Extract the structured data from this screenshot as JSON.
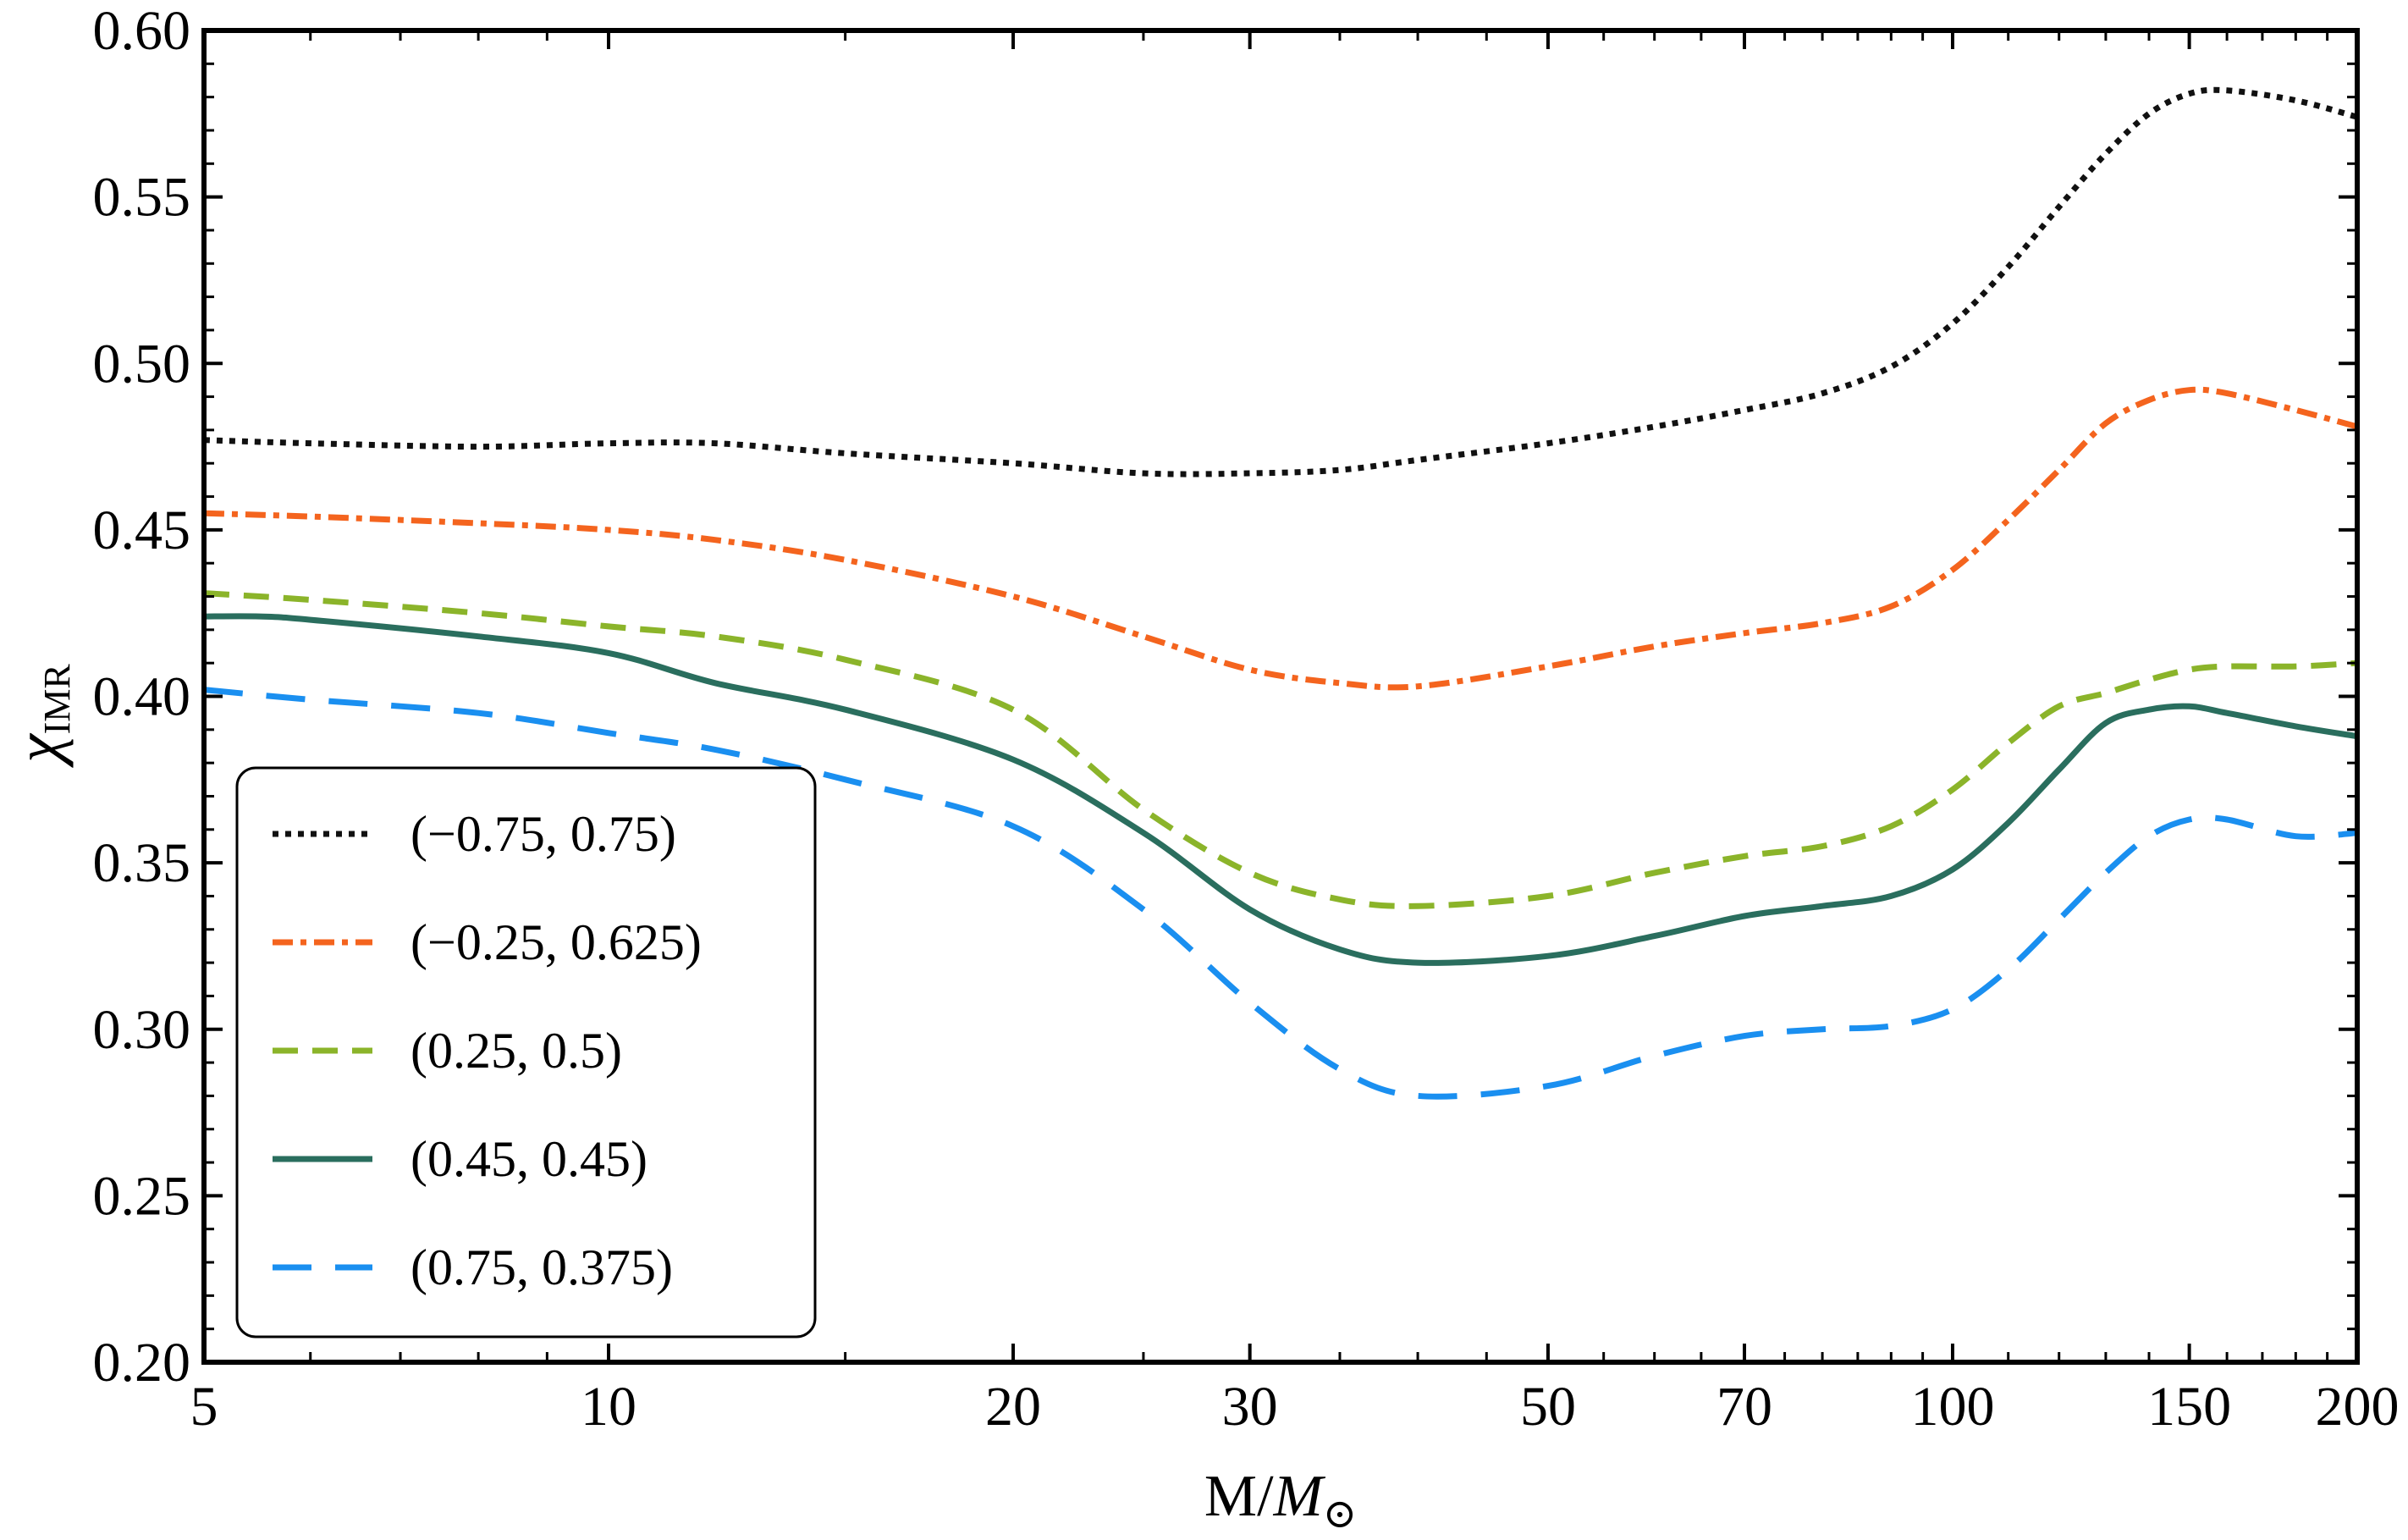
{
  "chart_data": {
    "type": "line",
    "title": "",
    "xlabel": {
      "main": "M/",
      "symbol": "M",
      "subscript": "⊙"
    },
    "ylabel": {
      "symbol": "χ",
      "subscript": "IMR"
    },
    "xscale": "log",
    "xlim": [
      5,
      200
    ],
    "ylim": [
      0.2,
      0.6
    ],
    "xticks": [
      5,
      10,
      20,
      30,
      50,
      70,
      100,
      150,
      200
    ],
    "xtick_labels": [
      "5",
      "10",
      "20",
      "30",
      "50",
      "70",
      "100",
      "150",
      "200"
    ],
    "yticks": [
      0.2,
      0.25,
      0.3,
      0.35,
      0.4,
      0.45,
      0.5,
      0.55,
      0.6
    ],
    "ytick_labels": [
      "0.20",
      "0.25",
      "0.30",
      "0.35",
      "0.40",
      "0.45",
      "0.50",
      "0.55",
      "0.60"
    ],
    "grid": false,
    "legend_position": "bottom-left",
    "series": [
      {
        "name": "(−0.75, 0.75)",
        "color": "#111111",
        "style": "dotted",
        "x": [
          5,
          6,
          8,
          10,
          12,
          15,
          20,
          25,
          30,
          35,
          40,
          50,
          60,
          70,
          80,
          90,
          100,
          110,
          120,
          130,
          140,
          150,
          160,
          180,
          200
        ],
        "y": [
          0.477,
          0.476,
          0.475,
          0.476,
          0.476,
          0.473,
          0.47,
          0.467,
          0.467,
          0.468,
          0.471,
          0.476,
          0.481,
          0.486,
          0.491,
          0.499,
          0.512,
          0.529,
          0.547,
          0.563,
          0.575,
          0.581,
          0.582,
          0.579,
          0.574
        ]
      },
      {
        "name": "(−0.25, 0.625)",
        "color": "#f4641e",
        "style": "dash-dot",
        "x": [
          5,
          6,
          8,
          10,
          12,
          15,
          20,
          25,
          30,
          35,
          40,
          50,
          60,
          70,
          80,
          90,
          100,
          110,
          120,
          130,
          140,
          150,
          160,
          180,
          200
        ],
        "y": [
          0.455,
          0.454,
          0.452,
          0.45,
          0.447,
          0.441,
          0.43,
          0.418,
          0.408,
          0.404,
          0.403,
          0.409,
          0.415,
          0.419,
          0.422,
          0.427,
          0.438,
          0.453,
          0.468,
          0.482,
          0.489,
          0.492,
          0.491,
          0.486,
          0.481
        ]
      },
      {
        "name": "(0.25, 0.5)",
        "color": "#8bb42a",
        "style": "dashed",
        "x": [
          5,
          6,
          8,
          10,
          12,
          15,
          20,
          25,
          30,
          35,
          40,
          50,
          60,
          70,
          80,
          90,
          100,
          110,
          120,
          130,
          140,
          150,
          160,
          180,
          200
        ],
        "y": [
          0.431,
          0.429,
          0.425,
          0.421,
          0.418,
          0.411,
          0.396,
          0.366,
          0.347,
          0.339,
          0.337,
          0.34,
          0.347,
          0.352,
          0.355,
          0.361,
          0.372,
          0.386,
          0.397,
          0.401,
          0.405,
          0.408,
          0.409,
          0.409,
          0.41
        ]
      },
      {
        "name": "(0.45, 0.45)",
        "color": "#2a6e5e",
        "style": "solid",
        "x": [
          5,
          5.5,
          6,
          8,
          10,
          12,
          15,
          20,
          25,
          30,
          35,
          40,
          50,
          60,
          70,
          80,
          90,
          100,
          110,
          120,
          130,
          140,
          150,
          160,
          180,
          200
        ],
        "y": [
          0.424,
          0.424,
          0.423,
          0.418,
          0.413,
          0.404,
          0.396,
          0.381,
          0.359,
          0.336,
          0.324,
          0.32,
          0.322,
          0.328,
          0.334,
          0.337,
          0.34,
          0.348,
          0.362,
          0.378,
          0.392,
          0.396,
          0.397,
          0.395,
          0.391,
          0.388
        ]
      },
      {
        "name": "(0.75, 0.375)",
        "color": "#1a8ff0",
        "style": "long-dash",
        "x": [
          5,
          6,
          8,
          10,
          12,
          15,
          20,
          25,
          30,
          35,
          40,
          50,
          60,
          70,
          80,
          90,
          100,
          110,
          120,
          130,
          140,
          150,
          160,
          180,
          200
        ],
        "y": [
          0.402,
          0.399,
          0.395,
          0.389,
          0.384,
          0.375,
          0.361,
          0.336,
          0.308,
          0.288,
          0.28,
          0.283,
          0.292,
          0.298,
          0.3,
          0.301,
          0.306,
          0.318,
          0.333,
          0.347,
          0.358,
          0.363,
          0.363,
          0.358,
          0.359
        ]
      }
    ]
  }
}
